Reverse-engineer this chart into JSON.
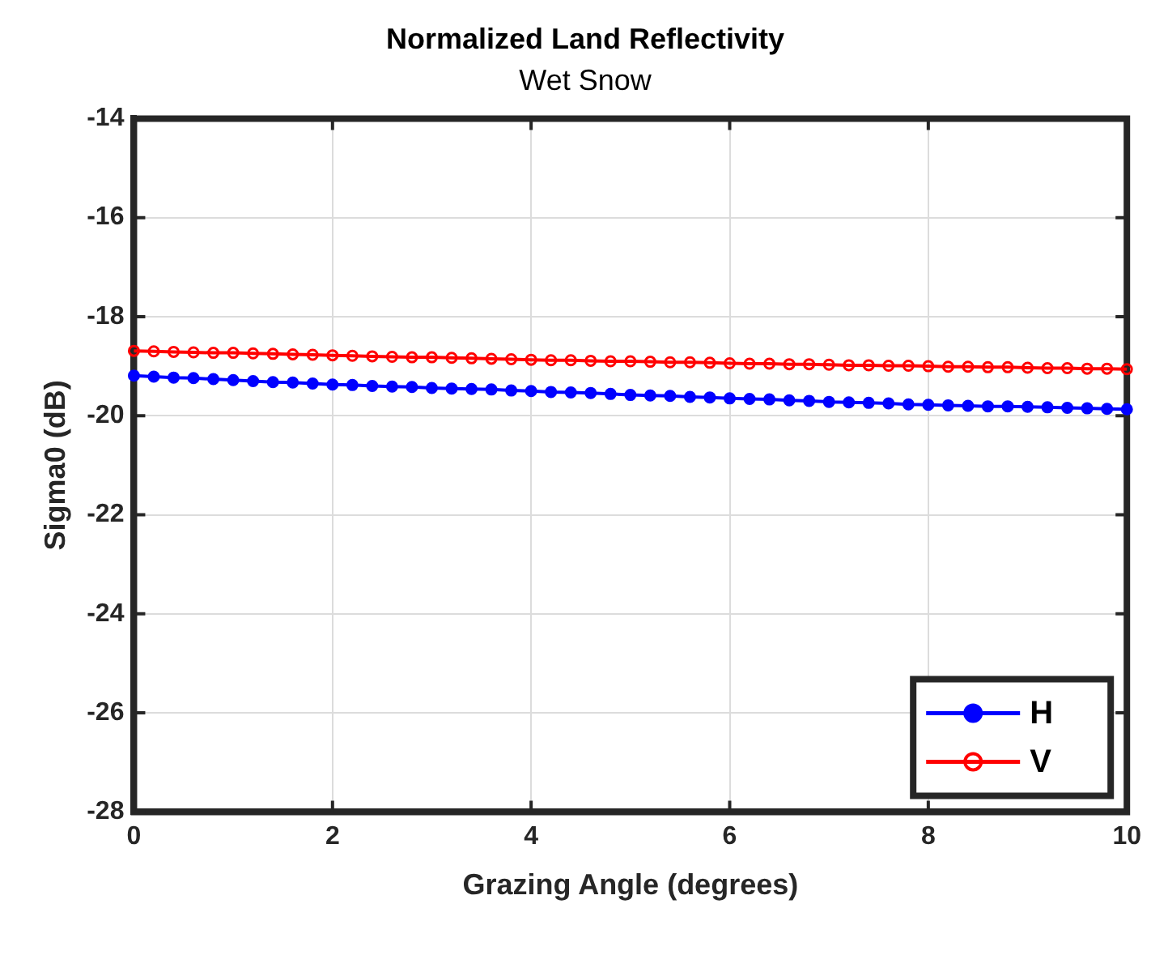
{
  "chart_data": {
    "type": "line",
    "title": "Normalized Land Reflectivity",
    "subtitle": "Wet Snow",
    "xlabel": "Grazing Angle (degrees)",
    "ylabel": "Sigma0 (dB)",
    "x": [
      0,
      0.2,
      0.4,
      0.6,
      0.8,
      1,
      1.2,
      1.4,
      1.6,
      1.8,
      2,
      2.2,
      2.4,
      2.6,
      2.8,
      3,
      3.2,
      3.4,
      3.6,
      3.8,
      4,
      4.2,
      4.4,
      4.6,
      4.8,
      5,
      5.2,
      5.4,
      5.6,
      5.8,
      6,
      6.2,
      6.4,
      6.6,
      6.8,
      7,
      7.2,
      7.4,
      7.6,
      7.8,
      8,
      8.2,
      8.4,
      8.6,
      8.8,
      9,
      9.2,
      9.4,
      9.6,
      9.8,
      10
    ],
    "series": [
      {
        "name": "H",
        "color": "#0000ff",
        "values": [
          -19.19,
          -19.21,
          -19.23,
          -19.24,
          -19.26,
          -19.28,
          -19.3,
          -19.32,
          -19.33,
          -19.35,
          -19.37,
          -19.38,
          -19.4,
          -19.41,
          -19.42,
          -19.44,
          -19.45,
          -19.46,
          -19.47,
          -19.49,
          -19.5,
          -19.52,
          -19.53,
          -19.54,
          -19.56,
          -19.58,
          -19.59,
          -19.6,
          -19.62,
          -19.63,
          -19.65,
          -19.66,
          -19.67,
          -19.69,
          -19.7,
          -19.72,
          -19.73,
          -19.74,
          -19.75,
          -19.77,
          -19.78,
          -19.79,
          -19.8,
          -19.81,
          -19.81,
          -19.82,
          -19.83,
          -19.84,
          -19.85,
          -19.86,
          -19.87
        ]
      },
      {
        "name": "V",
        "color": "#ff0000",
        "values": [
          -18.69,
          -18.7,
          -18.71,
          -18.72,
          -18.73,
          -18.73,
          -18.74,
          -18.75,
          -18.76,
          -18.77,
          -18.78,
          -18.79,
          -18.8,
          -18.81,
          -18.82,
          -18.82,
          -18.83,
          -18.84,
          -18.85,
          -18.86,
          -18.87,
          -18.88,
          -18.88,
          -18.89,
          -18.9,
          -18.9,
          -18.91,
          -18.92,
          -18.92,
          -18.93,
          -18.94,
          -18.95,
          -18.95,
          -18.96,
          -18.96,
          -18.97,
          -18.98,
          -18.98,
          -18.99,
          -18.99,
          -19.0,
          -19.01,
          -19.01,
          -19.02,
          -19.02,
          -19.03,
          -19.04,
          -19.04,
          -19.05,
          -19.05,
          -19.06
        ]
      }
    ],
    "xlim": [
      0,
      10
    ],
    "xticks": [
      0,
      2,
      4,
      6,
      8,
      10
    ],
    "ylim": [
      -28,
      -14
    ],
    "yticks": [
      -28,
      -26,
      -24,
      -22,
      -20,
      -18,
      -16,
      -14
    ],
    "grid": true,
    "legend": "bottom right",
    "marker": "circle",
    "line_style": "solid"
  }
}
